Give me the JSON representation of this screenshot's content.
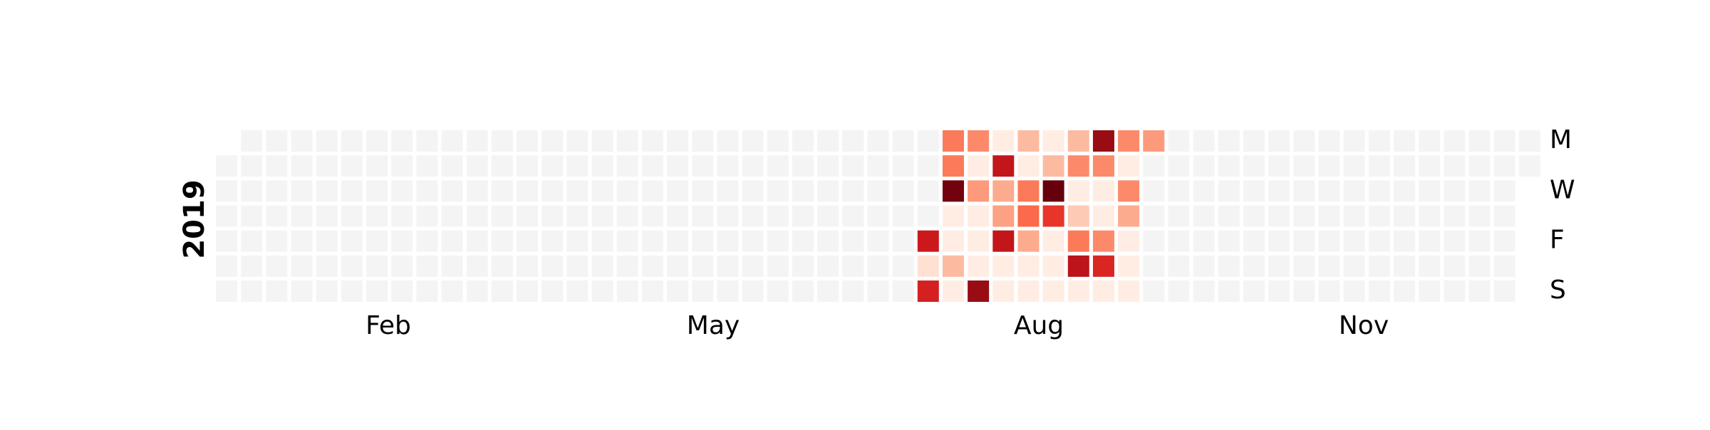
{
  "chart_data": {
    "type": "heatmap",
    "year": "2019",
    "first_day_of_year": "Tuesday",
    "empty_color": "#f4f4f4",
    "colormap": "Reds",
    "month_labels": [
      "Feb",
      "May",
      "Aug",
      "Nov"
    ],
    "day_labels": [
      "M",
      "W",
      "F",
      "S"
    ],
    "weeks_start_day": "Monday",
    "value_range": [
      0,
      1
    ],
    "weeks": [
      {
        "week_start": "2019-07-15",
        "values": [
          null,
          null,
          null,
          null,
          0.75,
          0.12,
          0.72
        ]
      },
      {
        "week_start": "2019-07-22",
        "values": [
          0.45,
          0.45,
          0.98,
          0.05,
          0.05,
          0.25,
          0.05
        ]
      },
      {
        "week_start": "2019-07-29",
        "values": [
          0.4,
          0.05,
          0.35,
          0.05,
          0.05,
          0.05,
          0.9
        ]
      },
      {
        "week_start": "2019-08-05",
        "values": [
          0.05,
          0.78,
          0.3,
          0.33,
          0.78,
          0.05,
          0.05
        ]
      },
      {
        "week_start": "2019-08-12",
        "values": [
          0.25,
          0.05,
          0.45,
          0.5,
          0.3,
          0.05,
          0.05
        ]
      },
      {
        "week_start": "2019-08-19",
        "values": [
          0.05,
          0.25,
          1.0,
          0.65,
          0.05,
          0.05,
          0.05
        ]
      },
      {
        "week_start": "2019-08-26",
        "values": [
          0.25,
          0.4,
          0.05,
          0.2,
          0.45,
          0.8,
          0.05
        ]
      },
      {
        "week_start": "2019-09-02",
        "values": [
          0.9,
          0.4,
          0.05,
          0.05,
          0.4,
          0.7,
          0.05
        ]
      },
      {
        "week_start": "2019-09-09",
        "values": [
          0.4,
          0.05,
          0.4,
          0.3,
          0.05,
          0.05,
          0.05
        ]
      },
      {
        "week_start": "2019-09-16",
        "values": [
          0.35,
          null,
          null,
          null,
          null,
          null,
          null
        ]
      }
    ]
  }
}
